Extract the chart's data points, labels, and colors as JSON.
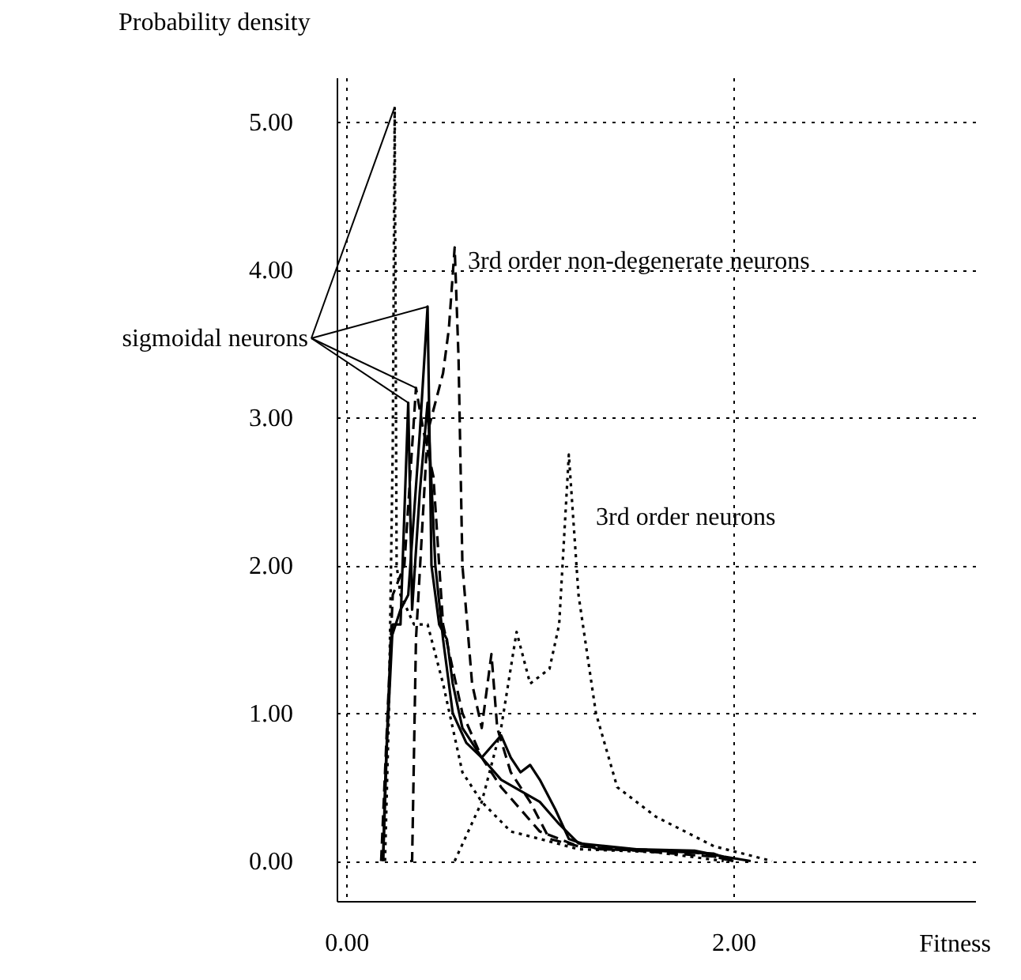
{
  "chart_data": {
    "type": "line",
    "xlabel": "Fitness",
    "ylabel": "Probability density",
    "xlim": [
      -0.05,
      3.25
    ],
    "ylim": [
      -0.27,
      5.3
    ],
    "xticks": [
      {
        "value": 0,
        "label": "0.00"
      },
      {
        "value": 2,
        "label": "2.00"
      }
    ],
    "yticks": [
      {
        "value": 0,
        "label": "0.00"
      },
      {
        "value": 1,
        "label": "1.00"
      },
      {
        "value": 2,
        "label": "2.00"
      },
      {
        "value": 3,
        "label": "3.00"
      },
      {
        "value": 4,
        "label": "4.00"
      },
      {
        "value": 5,
        "label": "5.00"
      }
    ],
    "grid": true,
    "marker": "none",
    "series": [
      {
        "color": "#000000",
        "line_style": "solid",
        "x": [
          0.19,
          0.2,
          0.23,
          0.28,
          0.32,
          0.38,
          0.42,
          0.44,
          0.48,
          0.52,
          0.55,
          0.6,
          0.7,
          0.8,
          1.0,
          1.1,
          1.2,
          1.5,
          1.8,
          1.95,
          2.09
        ],
        "values": [
          0,
          0.5,
          1.5,
          1.7,
          1.8,
          2.9,
          3.75,
          2.0,
          1.6,
          1.5,
          1.2,
          0.9,
          0.7,
          0.55,
          0.4,
          0.25,
          0.12,
          0.08,
          0.07,
          0.03,
          0
        ]
      },
      {
        "color": "#000000",
        "line_style": "solid",
        "x": [
          0.19,
          0.21,
          0.24,
          0.28,
          0.32,
          0.34,
          0.38,
          0.42,
          0.46,
          0.5,
          0.55,
          0.62,
          0.7,
          0.8,
          0.85,
          0.9,
          0.95,
          1.0,
          1.08,
          1.15,
          1.3,
          1.6,
          1.9,
          2.0
        ],
        "values": [
          0,
          0.8,
          1.6,
          1.6,
          3.1,
          1.7,
          2.5,
          3.1,
          2.0,
          1.5,
          1.0,
          0.8,
          0.7,
          0.85,
          0.7,
          0.6,
          0.65,
          0.55,
          0.35,
          0.15,
          0.08,
          0.07,
          0.05,
          0
        ]
      },
      {
        "color": "#000000",
        "line_style": "dotted",
        "x": [
          0.2,
          0.22,
          0.24,
          0.25,
          0.26,
          0.28,
          0.35,
          0.42,
          0.5,
          0.6,
          0.7,
          0.85,
          1.0,
          1.2,
          1.6,
          1.95
        ],
        "values": [
          0,
          1.0,
          2.8,
          5.1,
          2.0,
          1.8,
          1.6,
          1.6,
          1.2,
          0.6,
          0.4,
          0.2,
          0.15,
          0.08,
          0.06,
          0
        ]
      },
      {
        "color": "#000000",
        "line_style": "dashed",
        "x": [
          0.18,
          0.2,
          0.24,
          0.3,
          0.36,
          0.4,
          0.45,
          0.5,
          0.6,
          0.7,
          0.8,
          0.9,
          1.0,
          1.2,
          1.5,
          1.9,
          2.0
        ],
        "values": [
          0,
          0.6,
          1.8,
          2.0,
          3.2,
          2.9,
          2.6,
          1.6,
          1.0,
          0.7,
          0.5,
          0.35,
          0.2,
          0.1,
          0.07,
          0.03,
          0
        ]
      },
      {
        "color": "#000000",
        "line_style": "dashed",
        "x": [
          0.33,
          0.34,
          0.36,
          0.42,
          0.5,
          0.53,
          0.56,
          0.58,
          0.6,
          0.65,
          0.7,
          0.75,
          0.78,
          0.85,
          0.95,
          1.05,
          1.2,
          1.5,
          1.8,
          2.0
        ],
        "values": [
          0,
          0,
          1.5,
          2.9,
          3.3,
          3.6,
          4.15,
          3.4,
          2.0,
          1.2,
          0.9,
          1.4,
          0.9,
          0.6,
          0.4,
          0.15,
          0.1,
          0.08,
          0.06,
          0
        ]
      },
      {
        "color": "#000000",
        "line_style": "dotted",
        "x": [
          0.56,
          0.7,
          0.8,
          0.88,
          0.95,
          1.05,
          1.1,
          1.15,
          1.2,
          1.29,
          1.4,
          1.6,
          1.9,
          2.2
        ],
        "values": [
          0,
          0.4,
          0.9,
          1.55,
          1.2,
          1.3,
          1.6,
          2.75,
          1.8,
          1.0,
          0.5,
          0.3,
          0.1,
          0
        ]
      }
    ],
    "annotations": [
      {
        "text": "sigmoidal neurons",
        "x": 0.42,
        "y": 3.75
      },
      "3rd order non-degenerate neurons",
      "3rd order neurons"
    ]
  }
}
